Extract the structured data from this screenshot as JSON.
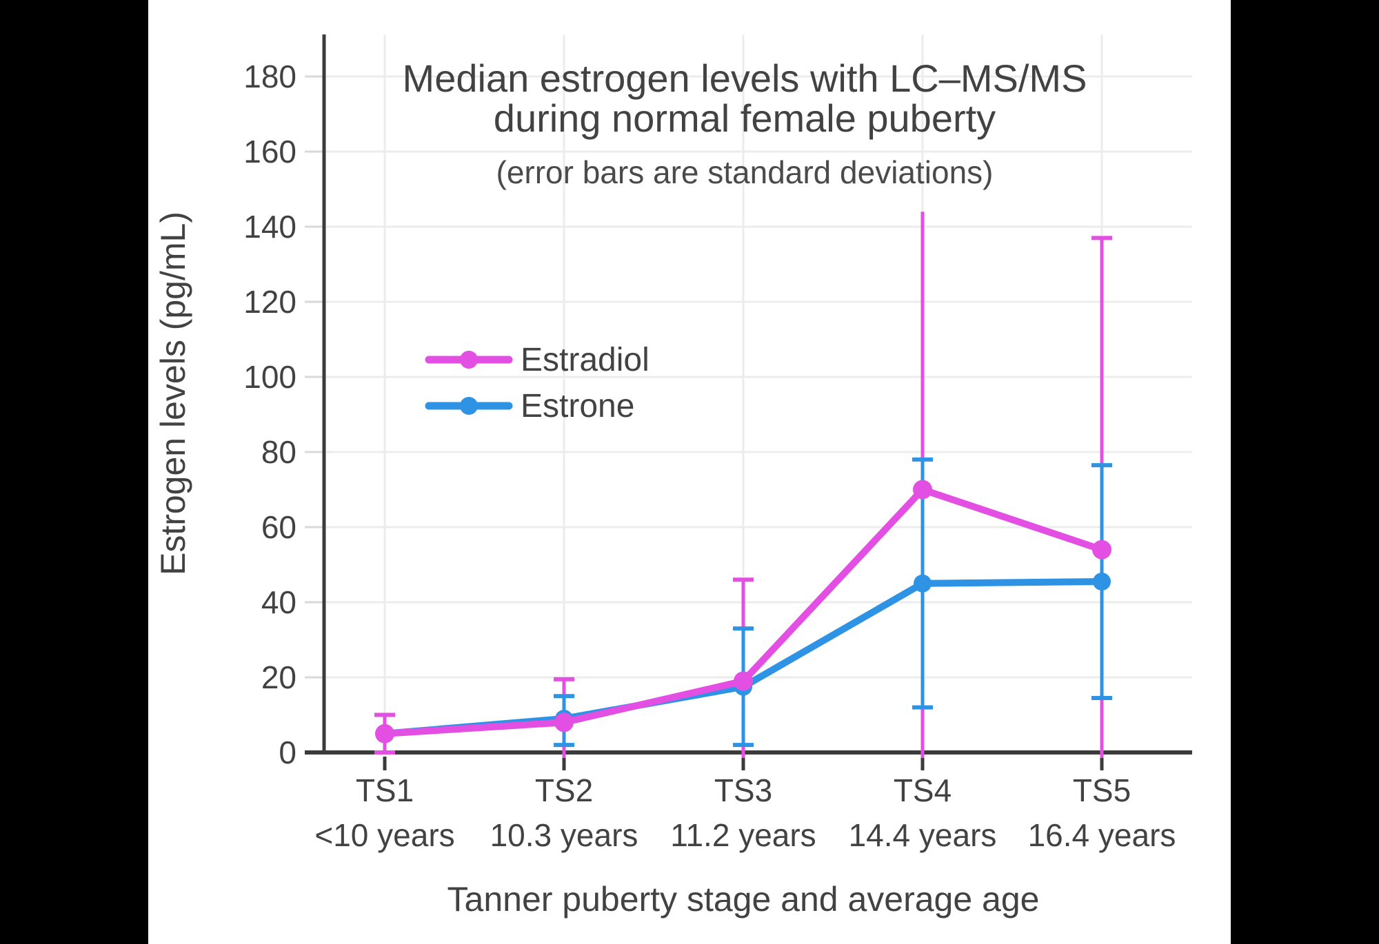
{
  "frame": {
    "background": "#000000",
    "content_background": "#FFFFFF",
    "content_left": 215,
    "content_width": 1570
  },
  "chart_data": {
    "type": "line",
    "title_line1": "Median estrogen levels with LC–MS/MS",
    "title_line2": "during normal female puberty",
    "subtitle": "(error bars are standard deviations)",
    "xlabel": "Tanner puberty stage and average age",
    "ylabel": "Estrogen levels (pg/mL)",
    "x_categories": [
      "TS1",
      "TS2",
      "TS3",
      "TS4",
      "TS5"
    ],
    "x_category_ages": [
      "<10 years",
      "10.3 years",
      "11.2 years",
      "14.4 years",
      "16.4 years"
    ],
    "ylim": [
      0,
      192
    ],
    "yticks": [
      0,
      20,
      40,
      60,
      80,
      100,
      120,
      140,
      160,
      180
    ],
    "grid": true,
    "legend": {
      "position": "inside-upper-left"
    },
    "series": [
      {
        "name": "Estradiol",
        "color": "#E24FE2",
        "values": [
          5,
          8,
          19,
          70,
          54
        ],
        "error_bars": [
          {
            "up": 10,
            "up_cap": true,
            "down": 0,
            "down_cap": true
          },
          {
            "up": 19.5,
            "up_cap": true,
            "down": 0,
            "down_cap": false
          },
          {
            "up": 46,
            "up_cap": true,
            "down": 0,
            "down_cap": false
          },
          {
            "up": 144,
            "up_cap": false,
            "down": 0,
            "down_cap": false
          },
          {
            "up": 137,
            "up_cap": true,
            "down": 0,
            "down_cap": false
          }
        ]
      },
      {
        "name": "Estrone",
        "color": "#2E93E5",
        "values": [
          5,
          9,
          17.5,
          45,
          45.5
        ],
        "error_bars": [
          null,
          {
            "up": 15,
            "up_cap": true,
            "down": 2,
            "down_cap": true
          },
          {
            "up": 33,
            "up_cap": true,
            "down": 2,
            "down_cap": true
          },
          {
            "up": 78,
            "up_cap": true,
            "down": 12,
            "down_cap": true
          },
          {
            "up": 76.5,
            "up_cap": true,
            "down": 14.5,
            "down_cap": true
          }
        ]
      }
    ],
    "colors": {
      "axis": "#3B3B3B",
      "grid": "#ECECEC",
      "y_tick": "#D9D9D9",
      "text": "#424242"
    }
  }
}
